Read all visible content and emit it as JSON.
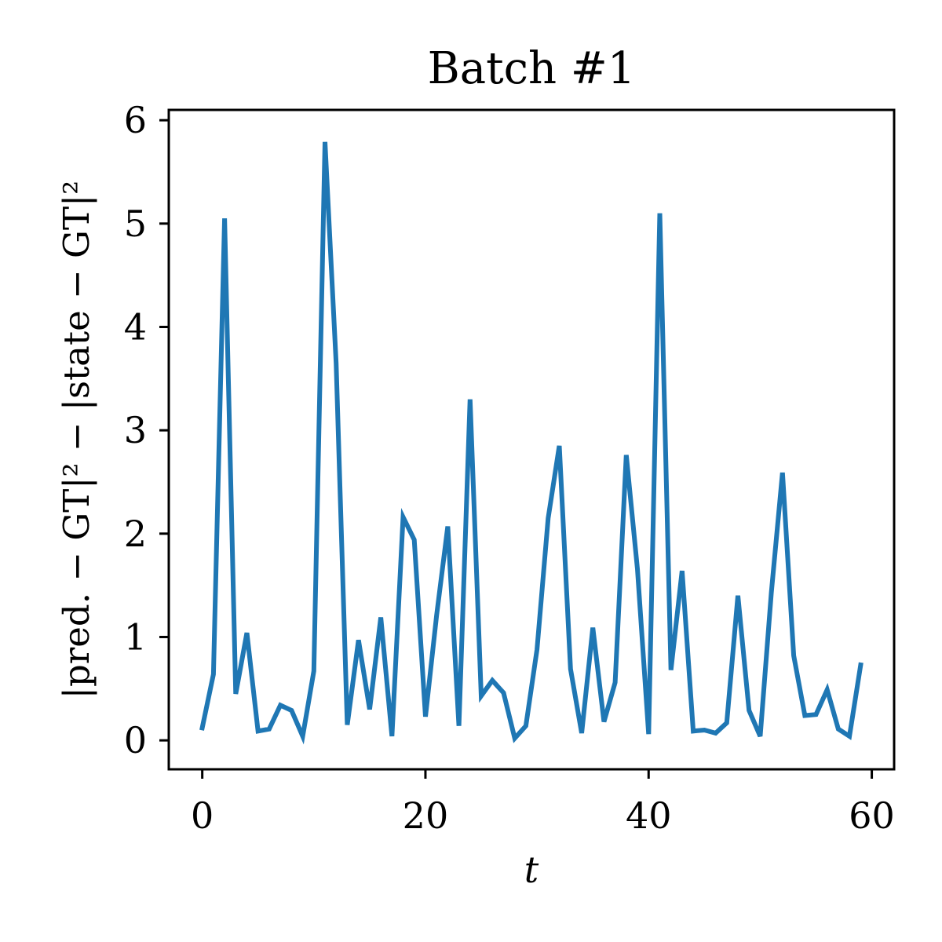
{
  "chart_data": {
    "type": "line",
    "title": "Batch #1",
    "xlabel": "t",
    "ylabel": "|pred. − GT|² − |state − GT|²",
    "xlim": [
      -3,
      62
    ],
    "ylim": [
      -0.28,
      6.1
    ],
    "xticks": [
      0,
      20,
      40,
      60
    ],
    "yticks": [
      0,
      1,
      2,
      3,
      4,
      5,
      6
    ],
    "grid": false,
    "line_color": "#1f77b4",
    "series": [
      {
        "x": [
          0,
          1,
          2,
          3,
          4,
          5,
          6,
          7,
          8,
          9,
          10,
          11,
          12,
          13,
          14,
          15,
          16,
          17,
          18,
          19,
          20,
          21,
          22,
          23,
          24,
          25,
          26,
          27,
          28,
          29,
          30,
          31,
          32,
          33,
          34,
          35,
          36,
          37,
          38,
          39,
          40,
          41,
          42,
          43,
          44,
          45,
          46,
          47,
          48,
          49,
          50,
          51,
          52,
          53,
          54,
          55,
          56,
          57,
          58,
          59
        ],
        "y": [
          0.12,
          0.64,
          5.05,
          0.45,
          1.04,
          0.09,
          0.11,
          0.34,
          0.29,
          0.04,
          0.67,
          5.79,
          3.65,
          0.15,
          0.97,
          0.3,
          1.19,
          0.04,
          2.16,
          1.94,
          0.23,
          1.21,
          2.07,
          0.14,
          3.3,
          0.43,
          0.58,
          0.46,
          0.02,
          0.14,
          0.88,
          2.15,
          2.85,
          0.69,
          0.07,
          1.09,
          0.18,
          0.56,
          2.76,
          1.66,
          0.06,
          5.1,
          0.68,
          1.64,
          0.09,
          0.1,
          0.07,
          0.17,
          1.4,
          0.29,
          0.04,
          1.43,
          2.59,
          0.82,
          0.24,
          0.25,
          0.49,
          0.11,
          0.04,
          0.73
        ]
      }
    ]
  }
}
